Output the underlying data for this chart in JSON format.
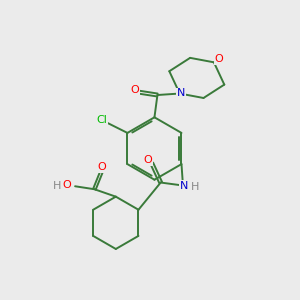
{
  "background_color": "#ebebeb",
  "bond_color": "#3a7a3a",
  "atom_colors": {
    "O": "#ff0000",
    "N": "#0000cc",
    "Cl": "#00bb00",
    "H": "#888888",
    "C": "#3a7a3a"
  },
  "figsize": [
    3.0,
    3.0
  ],
  "dpi": 100
}
